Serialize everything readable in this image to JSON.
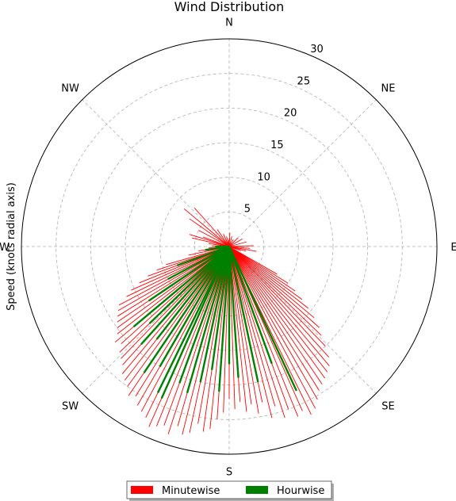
{
  "chart_data": {
    "type": "polar-bar",
    "title": "Wind Distribution",
    "ylabel": "Speed (knots radial axis)",
    "directions": [
      "N",
      "NE",
      "E",
      "SE",
      "S",
      "SW",
      "W",
      "NW"
    ],
    "rlim": [
      0,
      30
    ],
    "r_ticks": [
      5,
      10,
      15,
      20,
      25,
      30
    ],
    "grid": true,
    "legend_position": "bottom-center",
    "colors": {
      "minutewise": "#ff0000",
      "hourwise": "#008000"
    },
    "series": [
      {
        "name": "Minutewise",
        "color": "#ff0000",
        "points": [
          [
            3,
            2.0
          ],
          [
            15,
            1.5
          ],
          [
            30,
            1.2
          ],
          [
            45,
            1.8
          ],
          [
            60,
            2.2
          ],
          [
            75,
            2.6
          ],
          [
            88,
            3.5
          ],
          [
            95,
            3.0
          ],
          [
            100,
            4.0
          ],
          [
            105,
            2.5
          ],
          [
            110,
            1.8
          ],
          [
            120,
            8.0
          ],
          [
            122,
            10.0
          ],
          [
            124,
            11.5
          ],
          [
            126,
            13.0
          ],
          [
            128,
            14.5
          ],
          [
            130,
            16.0
          ],
          [
            132,
            17.5
          ],
          [
            134,
            18.5
          ],
          [
            136,
            20.0
          ],
          [
            138,
            21.5
          ],
          [
            140,
            22.5
          ],
          [
            142,
            23.0
          ],
          [
            144,
            23.5
          ],
          [
            146,
            24.0
          ],
          [
            148,
            24.5
          ],
          [
            150,
            25.5
          ],
          [
            152,
            26.5
          ],
          [
            154,
            27.0
          ],
          [
            156,
            26.0
          ],
          [
            158,
            26.5
          ],
          [
            160,
            25.0
          ],
          [
            162,
            26.0
          ],
          [
            164,
            24.0
          ],
          [
            166,
            25.5
          ],
          [
            168,
            23.0
          ],
          [
            170,
            24.5
          ],
          [
            172,
            23.0
          ],
          [
            174,
            24.0
          ],
          [
            176,
            22.5
          ],
          [
            178,
            23.5
          ],
          [
            180,
            22.0
          ],
          [
            182,
            24.0
          ],
          [
            184,
            25.0
          ],
          [
            186,
            26.5
          ],
          [
            188,
            27.0
          ],
          [
            190,
            26.0
          ],
          [
            192,
            27.5
          ],
          [
            194,
            28.0
          ],
          [
            196,
            27.0
          ],
          [
            198,
            28.5
          ],
          [
            200,
            27.5
          ],
          [
            202,
            28.0
          ],
          [
            204,
            28.5
          ],
          [
            206,
            27.5
          ],
          [
            208,
            27.0
          ],
          [
            210,
            26.5
          ],
          [
            212,
            25.5
          ],
          [
            214,
            26.0
          ],
          [
            216,
            25.0
          ],
          [
            218,
            24.5
          ],
          [
            220,
            24.0
          ],
          [
            222,
            23.0
          ],
          [
            224,
            22.5
          ],
          [
            226,
            22.0
          ],
          [
            228,
            21.0
          ],
          [
            230,
            21.5
          ],
          [
            232,
            20.5
          ],
          [
            234,
            20.0
          ],
          [
            236,
            19.5
          ],
          [
            238,
            19.0
          ],
          [
            240,
            18.5
          ],
          [
            242,
            18.0
          ],
          [
            244,
            16.5
          ],
          [
            246,
            15.5
          ],
          [
            248,
            14.0
          ],
          [
            250,
            12.5
          ],
          [
            252,
            11.0
          ],
          [
            254,
            9.5
          ],
          [
            258,
            6.0
          ],
          [
            262,
            4.5
          ],
          [
            266,
            3.0
          ],
          [
            272,
            2.5
          ],
          [
            278,
            3.0
          ],
          [
            283,
            5.5
          ],
          [
            287,
            6.0
          ],
          [
            290,
            4.0
          ],
          [
            298,
            5.0
          ],
          [
            305,
            7.0
          ],
          [
            310,
            8.5
          ],
          [
            318,
            7.5
          ],
          [
            325,
            3.0
          ],
          [
            335,
            2.0
          ],
          [
            345,
            1.5
          ],
          [
            355,
            1.0
          ]
        ]
      },
      {
        "name": "Hourwise",
        "color": "#008000",
        "points": [
          [
            155,
            23.0
          ],
          [
            160,
            18.0
          ],
          [
            168,
            20.0
          ],
          [
            176,
            19.0
          ],
          [
            180,
            17.0
          ],
          [
            184,
            21.0
          ],
          [
            188,
            18.0
          ],
          [
            192,
            20.0
          ],
          [
            196,
            22.0
          ],
          [
            200,
            21.0
          ],
          [
            204,
            24.0
          ],
          [
            206,
            23.5
          ],
          [
            210,
            20.0
          ],
          [
            214,
            22.0
          ],
          [
            218,
            17.0
          ],
          [
            222,
            19.0
          ],
          [
            226,
            16.0
          ],
          [
            230,
            18.0
          ],
          [
            236,
            14.0
          ],
          [
            242,
            10.0
          ],
          [
            250,
            8.0
          ],
          [
            262,
            3.5
          ],
          [
            270,
            2.0
          ]
        ]
      }
    ]
  }
}
